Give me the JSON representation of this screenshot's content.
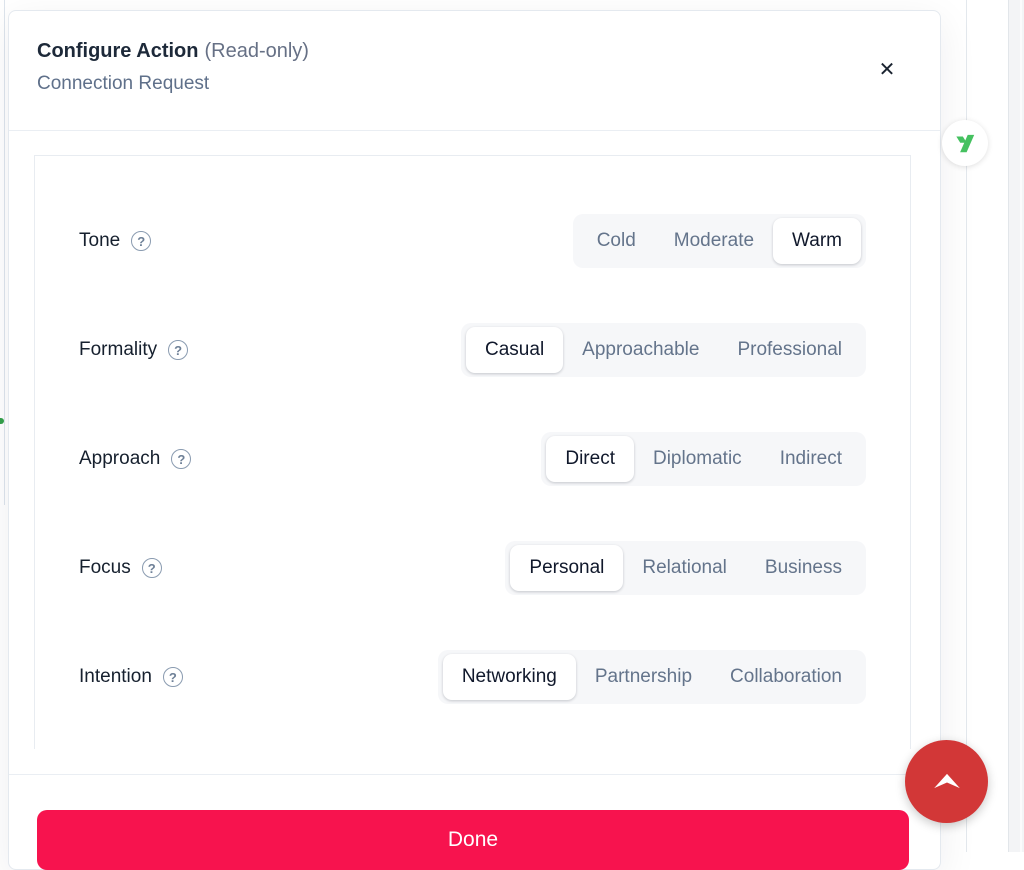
{
  "header": {
    "title": "Configure Action",
    "readonly_tag": "(Read-only)",
    "subtitle": "Connection Request",
    "close_icon": "✕"
  },
  "settings": [
    {
      "label": "Tone",
      "help_glyph": "?",
      "options": [
        "Cold",
        "Moderate",
        "Warm"
      ],
      "selected": "Warm"
    },
    {
      "label": "Formality",
      "help_glyph": "?",
      "options": [
        "Casual",
        "Approachable",
        "Professional"
      ],
      "selected": "Casual"
    },
    {
      "label": "Approach",
      "help_glyph": "?",
      "options": [
        "Direct",
        "Diplomatic",
        "Indirect"
      ],
      "selected": "Direct"
    },
    {
      "label": "Focus",
      "help_glyph": "?",
      "options": [
        "Personal",
        "Relational",
        "Business"
      ],
      "selected": "Personal"
    },
    {
      "label": "Intention",
      "help_glyph": "?",
      "options": [
        "Networking",
        "Partnership",
        "Collaboration"
      ],
      "selected": "Networking"
    }
  ],
  "footer": {
    "done_label": "Done"
  },
  "floating": {
    "brand_icon": "y-logo",
    "fab_icon": "arrow-up"
  },
  "colors": {
    "done_button": "#f7134e",
    "fab_red": "#d23737",
    "brand_green": "#45c160",
    "selected_text": "#10182b",
    "option_text": "#64748b"
  }
}
